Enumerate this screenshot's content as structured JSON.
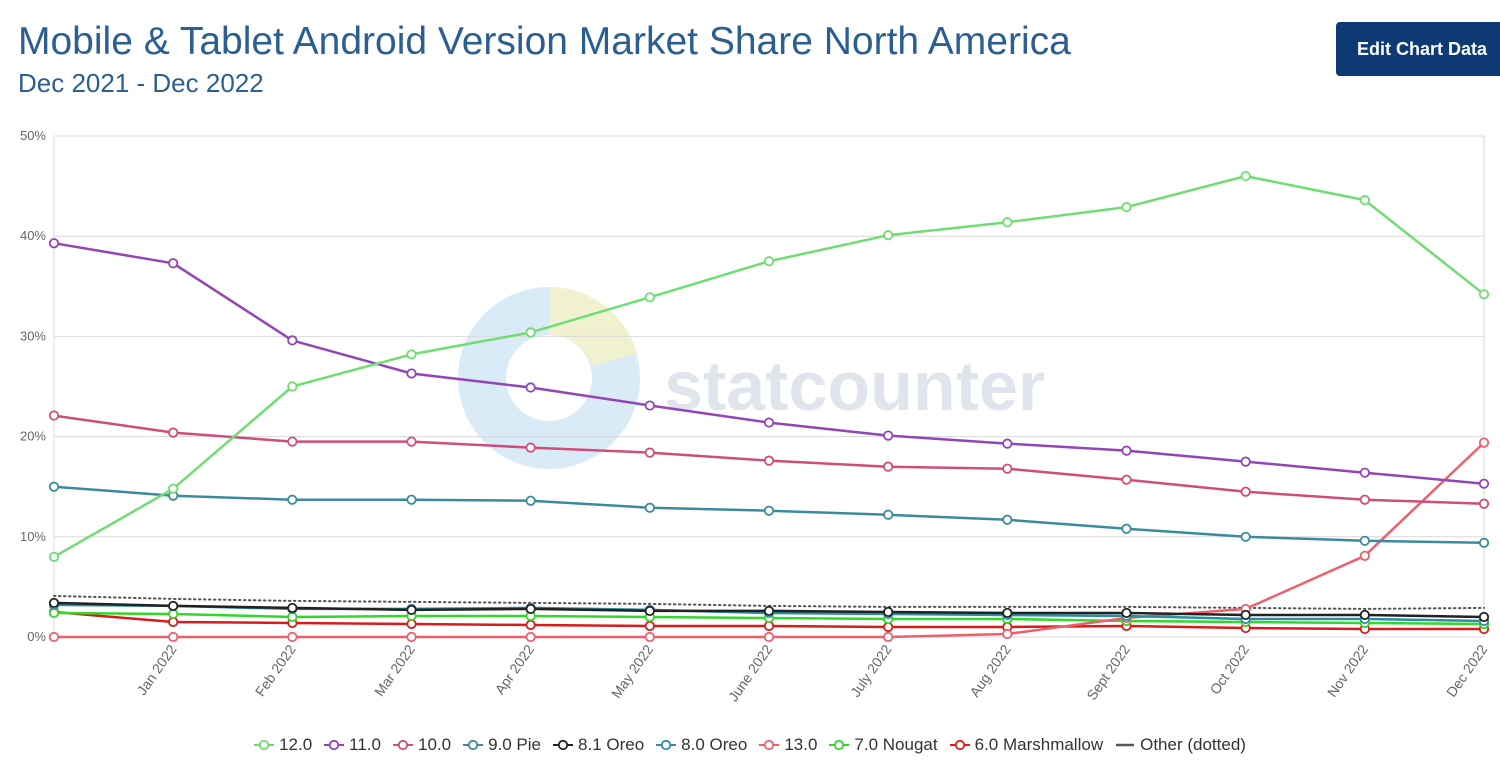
{
  "header": {
    "title": "Mobile & Tablet Android Version Market Share North America",
    "subtitle": "Dec 2021 - Dec 2022",
    "edit_button_label": "Edit Chart Data"
  },
  "watermark": {
    "text": "statcounter"
  },
  "chart_data": {
    "type": "line",
    "title": "Mobile & Tablet Android Version Market Share North America",
    "subtitle": "Dec 2021 - Dec 2022",
    "x": [
      "Dec 2021",
      "Jan 2022",
      "Feb 2022",
      "Mar 2022",
      "Apr 2022",
      "May 2022",
      "June 2022",
      "July 2022",
      "Aug 2022",
      "Sept 2022",
      "Oct 2022",
      "Nov 2022",
      "Dec 2022"
    ],
    "x_tick_labels": [
      "",
      "Jan 2022",
      "Feb 2022",
      "Mar 2022",
      "Apr 2022",
      "May 2022",
      "June 2022",
      "July 2022",
      "Aug 2022",
      "Sept 2022",
      "Oct 2022",
      "Nov 2022",
      "Dec 2022"
    ],
    "y_ticks": [
      0,
      10,
      20,
      30,
      40,
      50
    ],
    "y_tick_labels": [
      "0%",
      "10%",
      "20%",
      "30%",
      "40%",
      "50%"
    ],
    "ylim": [
      0,
      50
    ],
    "grid": true,
    "legend_position": "bottom",
    "series": [
      {
        "name": "12.0",
        "color": "#6fdd72",
        "dotted": false,
        "values": [
          8.0,
          14.8,
          25.0,
          28.2,
          30.4,
          33.9,
          37.5,
          40.1,
          41.4,
          42.9,
          46.0,
          43.6,
          34.2
        ]
      },
      {
        "name": "11.0",
        "color": "#9245b5",
        "dotted": false,
        "values": [
          39.3,
          37.3,
          29.6,
          26.3,
          24.9,
          23.1,
          21.4,
          20.1,
          19.3,
          18.6,
          17.5,
          16.4,
          15.3
        ]
      },
      {
        "name": "10.0",
        "color": "#cf4d7a",
        "dotted": false,
        "values": [
          22.1,
          20.4,
          19.5,
          19.5,
          18.9,
          18.4,
          17.6,
          17.0,
          16.8,
          15.7,
          14.5,
          13.7,
          13.3
        ]
      },
      {
        "name": "9.0 Pie",
        "color": "#3b8b9c",
        "dotted": false,
        "values": [
          15.0,
          14.1,
          13.7,
          13.7,
          13.6,
          12.9,
          12.6,
          12.2,
          11.7,
          10.8,
          10.0,
          9.6,
          9.4
        ]
      },
      {
        "name": "8.1 Oreo",
        "color": "#222222",
        "dotted": false,
        "values": [
          3.4,
          3.1,
          2.9,
          2.7,
          2.8,
          2.6,
          2.6,
          2.5,
          2.4,
          2.4,
          2.2,
          2.2,
          2.0
        ]
      },
      {
        "name": "8.0 Oreo",
        "color": "#2b8fa3",
        "dotted": false,
        "values": [
          3.2,
          3.1,
          2.8,
          2.8,
          2.9,
          2.7,
          2.4,
          2.3,
          2.2,
          2.1,
          1.8,
          1.8,
          1.6
        ]
      },
      {
        "name": "13.0",
        "color": "#ee5f6e",
        "dotted": false,
        "values": [
          0.0,
          0.0,
          0.0,
          0.0,
          0.0,
          0.0,
          0.0,
          0.0,
          0.3,
          1.9,
          2.8,
          8.1,
          19.4
        ]
      },
      {
        "name": "7.0 Nougat",
        "color": "#31d82a",
        "dotted": false,
        "values": [
          2.4,
          2.3,
          2.0,
          2.1,
          2.1,
          2.0,
          1.9,
          1.8,
          1.8,
          1.6,
          1.5,
          1.4,
          1.3
        ]
      },
      {
        "name": "6.0 Marshmallow",
        "color": "#d81c1c",
        "dotted": false,
        "values": [
          2.5,
          1.5,
          1.4,
          1.3,
          1.2,
          1.1,
          1.1,
          1.0,
          1.0,
          1.1,
          0.9,
          0.8,
          0.8
        ]
      },
      {
        "name": "Other (dotted)",
        "color": "#555555",
        "dotted": true,
        "values": [
          4.1,
          3.8,
          3.6,
          3.5,
          3.4,
          3.3,
          3.1,
          3.0,
          3.0,
          3.0,
          2.9,
          2.8,
          2.9
        ]
      }
    ]
  }
}
